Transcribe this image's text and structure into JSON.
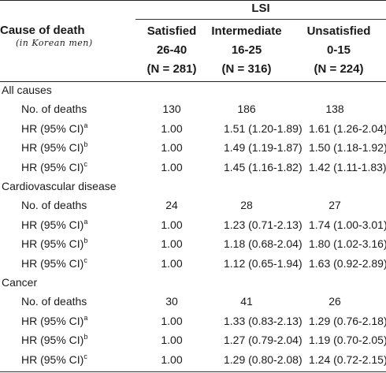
{
  "header": {
    "group_label": "LSI",
    "row_header": "Cause of death",
    "row_header_note": "(in Korean men)",
    "columns": [
      {
        "name": "Satisfied",
        "range": "26-40",
        "n": "(N = 281)"
      },
      {
        "name": "Intermediate",
        "range": "16-25",
        "n": "(N = 316)"
      },
      {
        "name": "Unsatisfied",
        "range": "0-15",
        "n": "(N = 224)"
      }
    ]
  },
  "sections": [
    {
      "title": "All causes",
      "rows": [
        {
          "label": "No. of deaths",
          "sup": "",
          "values": [
            "130",
            "186",
            "138"
          ]
        },
        {
          "label": "HR (95% CI)",
          "sup": "a",
          "values": [
            "1.00",
            "1.51 (1.20-1.89)",
            "1.61 (1.26-2.04)"
          ]
        },
        {
          "label": "HR (95% CI)",
          "sup": "b",
          "values": [
            "1.00",
            "1.49 (1.19-1.87)",
            "1.50 (1.18-1.92)"
          ]
        },
        {
          "label": "HR (95% CI)",
          "sup": "c",
          "values": [
            "1.00",
            "1.45 (1.16-1.82)",
            "1.42 (1.11-1.83)"
          ]
        }
      ]
    },
    {
      "title": "Cardiovascular disease",
      "rows": [
        {
          "label": "No. of deaths",
          "sup": "",
          "values": [
            "24",
            "28",
            "27"
          ]
        },
        {
          "label": "HR (95% CI)",
          "sup": "a",
          "values": [
            "1.00",
            "1.23 (0.71-2.13)",
            "1.74 (1.00-3.01)"
          ]
        },
        {
          "label": "HR (95% CI)",
          "sup": "b",
          "values": [
            "1.00",
            "1.18 (0.68-2.04)",
            "1.80 (1.02-3.16)"
          ]
        },
        {
          "label": "HR (95% CI)",
          "sup": "c",
          "values": [
            "1.00",
            "1.12 (0.65-1.94)",
            "1.63 (0.92-2.89)"
          ]
        }
      ]
    },
    {
      "title": "Cancer",
      "rows": [
        {
          "label": "No. of deaths",
          "sup": "",
          "values": [
            "30",
            "41",
            "26"
          ]
        },
        {
          "label": "HR (95% CI)",
          "sup": "a",
          "values": [
            "1.00",
            "1.33 (0.83-2.13)",
            "1.29 (0.76-2.18)"
          ]
        },
        {
          "label": "HR (95% CI)",
          "sup": "b",
          "values": [
            "1.00",
            "1.27 (0.79-2.04)",
            "1.19 (0.70-2.05)"
          ]
        },
        {
          "label": "HR (95% CI)",
          "sup": "c",
          "values": [
            "1.00",
            "1.29 (0.80-2.08)",
            "1.24 (0.72-2.15)"
          ]
        }
      ]
    }
  ]
}
